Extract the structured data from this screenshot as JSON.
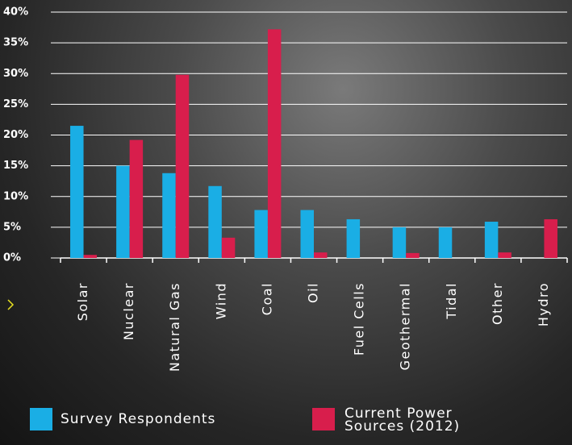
{
  "chart_data": {
    "type": "bar",
    "categories": [
      "Solar",
      "Nuclear",
      "Natural Gas",
      "Wind",
      "Coal",
      "Oil",
      "Fuel Cells",
      "Geothermal",
      "Tidal",
      "Other",
      "Hydro"
    ],
    "series": [
      {
        "name": "Survey Respondents",
        "color": "#1aaee5",
        "values": [
          21.5,
          15,
          13.8,
          11.7,
          7.8,
          7.8,
          6.3,
          5,
          5,
          5.9,
          0
        ]
      },
      {
        "name": "Current Power Sources (2012)",
        "color": "#d81e4c",
        "values": [
          0.5,
          19.2,
          29.8,
          3.3,
          37.2,
          0.9,
          0,
          0.8,
          0,
          0.9,
          6.3
        ]
      }
    ],
    "ylim": [
      0,
      40
    ],
    "yticks": [
      {
        "value": 0,
        "label": "0%"
      },
      {
        "value": 5,
        "label": "5%"
      },
      {
        "value": 10,
        "label": "10%"
      },
      {
        "value": 15,
        "label": "15%"
      },
      {
        "value": 20,
        "label": "20%"
      },
      {
        "value": 25,
        "label": "25%"
      },
      {
        "value": 30,
        "label": "30%"
      },
      {
        "value": 35,
        "label": "35%"
      },
      {
        "value": 40,
        "label": "40%"
      }
    ],
    "grid": true
  }
}
